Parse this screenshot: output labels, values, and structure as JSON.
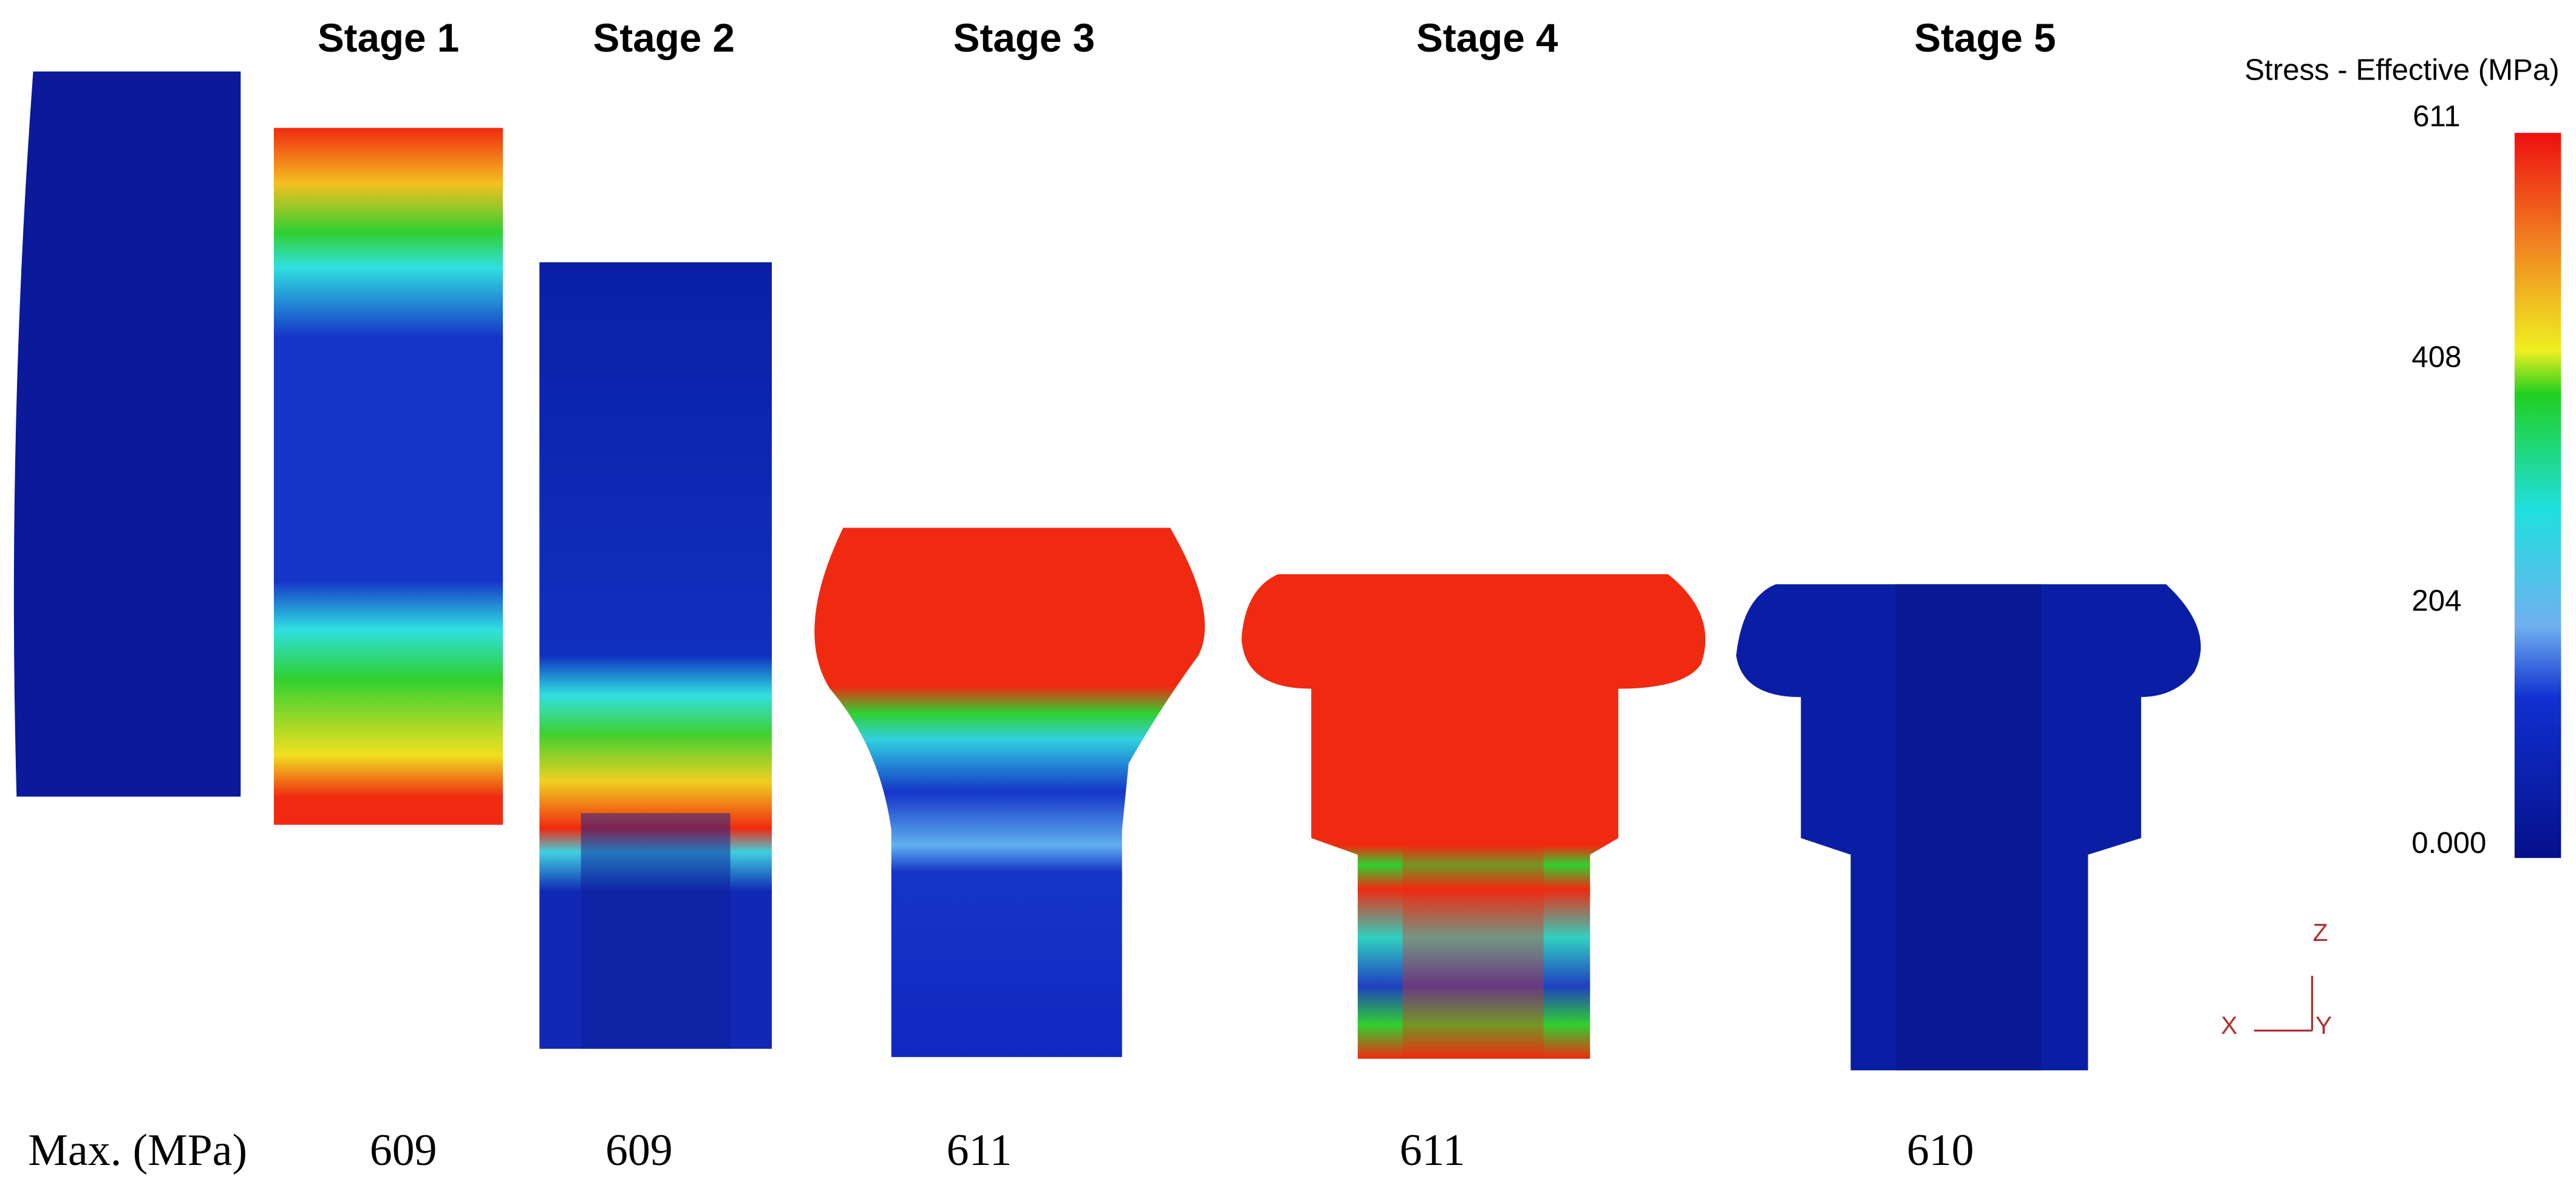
{
  "stages": [
    {
      "title": "Stage 1",
      "max": 609
    },
    {
      "title": "Stage 2",
      "max": 609
    },
    {
      "title": "Stage 3",
      "max": 611
    },
    {
      "title": "Stage 4",
      "max": 611
    },
    {
      "title": "Stage 5",
      "max": 610
    }
  ],
  "max_label": "Max. (MPa)",
  "colorbar": {
    "title": "Stress - Effective (MPa)",
    "ticks": [
      "611",
      "408",
      "204",
      "0.000"
    ]
  },
  "axes": {
    "z": "Z",
    "x": "X",
    "y": "Y"
  }
}
